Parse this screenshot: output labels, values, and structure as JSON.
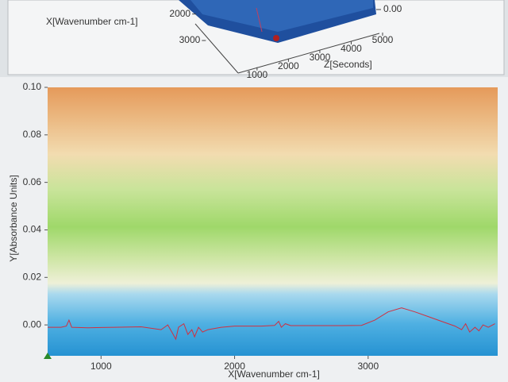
{
  "chart_data": [
    {
      "type": "surface3d",
      "xlabel": "X[Wavenumber cm-1]",
      "xlim": [
        1500,
        3300
      ],
      "xticks": [
        2000,
        3000
      ],
      "zlabel": "Z[Seconds]",
      "zlim": [
        700,
        5000
      ],
      "zticks": [
        1000,
        2000,
        3000,
        4000,
        5000
      ],
      "yticks": [
        {
          "value": 0,
          "label": "0.00"
        }
      ]
    },
    {
      "type": "line",
      "xlabel": "X[Wavenumber cm-1]",
      "ylabel": "Y[Absorbance Units]",
      "xlim": [
        600,
        3970
      ],
      "ylim": [
        -0.013,
        0.1
      ],
      "xticks": [
        1000,
        2000,
        3000
      ],
      "yticks": [
        {
          "value": 0,
          "label": "0.00"
        },
        {
          "value": 0.02,
          "label": "0.02"
        },
        {
          "value": 0.04,
          "label": "0.04"
        },
        {
          "value": 0.06,
          "label": "0.06"
        },
        {
          "value": 0.08,
          "label": "0.08"
        },
        {
          "value": 0.1,
          "label": "0.10"
        }
      ],
      "x": [
        600,
        700,
        740,
        760,
        780,
        900,
        1100,
        1300,
        1450,
        1500,
        1530,
        1560,
        1580,
        1620,
        1650,
        1680,
        1700,
        1730,
        1760,
        1800,
        1900,
        2000,
        2200,
        2300,
        2330,
        2350,
        2380,
        2420,
        2600,
        2800,
        2950,
        3050,
        3150,
        3250,
        3350,
        3450,
        3550,
        3650,
        3700,
        3730,
        3760,
        3800,
        3830,
        3860,
        3900,
        3950
      ],
      "series": [
        {
          "color": "#d03040",
          "values": [
            -0.001,
            -0.001,
            -0.0005,
            0.002,
            -0.001,
            -0.0012,
            -0.001,
            -0.0008,
            -0.002,
            0.0,
            -0.003,
            -0.006,
            -0.001,
            0.0005,
            -0.004,
            -0.002,
            -0.005,
            -0.001,
            -0.003,
            -0.002,
            -0.001,
            -0.0005,
            -0.0005,
            -0.0002,
            0.0015,
            -0.001,
            0.0005,
            -0.0003,
            -0.0003,
            -0.0003,
            -0.0002,
            0.002,
            0.0055,
            0.0072,
            0.0055,
            0.0035,
            0.0015,
            -0.0005,
            -0.002,
            0.0005,
            -0.003,
            -0.001,
            -0.0025,
            0.0,
            -0.001,
            0.0005
          ]
        }
      ]
    }
  ]
}
